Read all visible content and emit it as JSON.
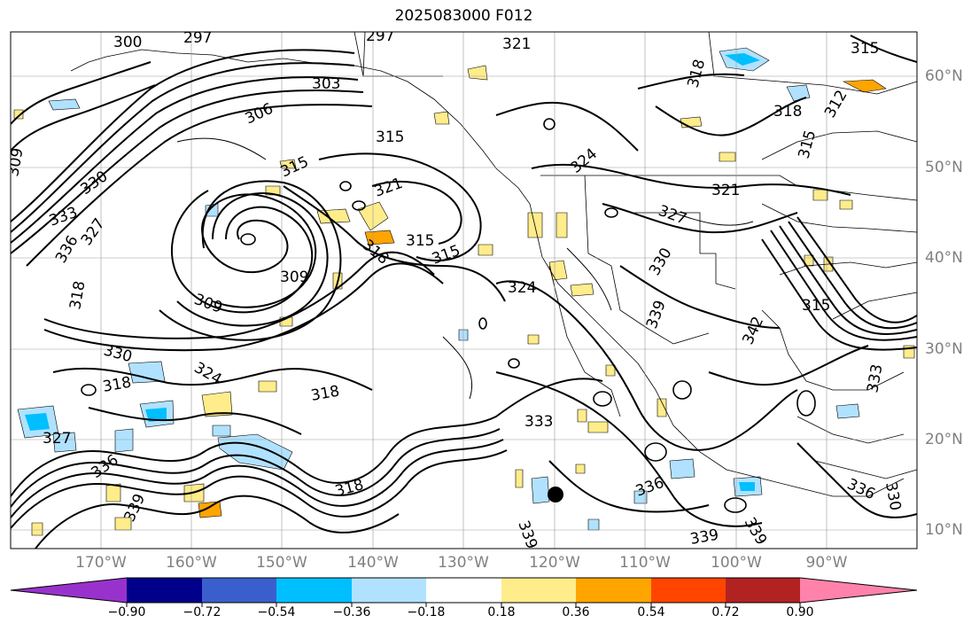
{
  "title": "2025083000 F012",
  "map": {
    "lat_labels": [
      {
        "text": "60°N",
        "lat": 60
      },
      {
        "text": "50°N",
        "lat": 50
      },
      {
        "text": "40°N",
        "lat": 40
      },
      {
        "text": "30°N",
        "lat": 30
      },
      {
        "text": "20°N",
        "lat": 20
      },
      {
        "text": "10°N",
        "lat": 10
      }
    ],
    "lon_labels": [
      {
        "text": "170°W",
        "lon": -170
      },
      {
        "text": "160°W",
        "lon": -160
      },
      {
        "text": "150°W",
        "lon": -150
      },
      {
        "text": "140°W",
        "lon": -140
      },
      {
        "text": "130°W",
        "lon": -130
      },
      {
        "text": "120°W",
        "lon": -120
      },
      {
        "text": "110°W",
        "lon": -110
      },
      {
        "text": "100°W",
        "lon": -100
      },
      {
        "text": "90°W",
        "lon": -90
      }
    ],
    "contour_labels": [
      {
        "text": "300"
      },
      {
        "text": "297"
      },
      {
        "text": "297"
      },
      {
        "text": "321"
      },
      {
        "text": "318"
      },
      {
        "text": "303"
      },
      {
        "text": "306"
      },
      {
        "text": "315"
      },
      {
        "text": "315"
      },
      {
        "text": "318"
      },
      {
        "text": "309"
      },
      {
        "text": "315"
      },
      {
        "text": "321"
      },
      {
        "text": "324"
      },
      {
        "text": "321"
      },
      {
        "text": "327"
      },
      {
        "text": "330"
      },
      {
        "text": "333"
      },
      {
        "text": "336"
      },
      {
        "text": "327"
      },
      {
        "text": "315"
      },
      {
        "text": "315"
      },
      {
        "text": "318"
      },
      {
        "text": "309"
      },
      {
        "text": "309"
      },
      {
        "text": "324"
      },
      {
        "text": "330"
      },
      {
        "text": "339"
      },
      {
        "text": "315"
      },
      {
        "text": "342"
      },
      {
        "text": "330"
      },
      {
        "text": "324"
      },
      {
        "text": "318"
      },
      {
        "text": "318"
      },
      {
        "text": "333"
      },
      {
        "text": "327"
      },
      {
        "text": "336"
      },
      {
        "text": "339"
      },
      {
        "text": "318"
      },
      {
        "text": "336"
      },
      {
        "text": "339"
      },
      {
        "text": "339"
      },
      {
        "text": "339"
      },
      {
        "text": "333"
      },
      {
        "text": "330"
      },
      {
        "text": "336"
      },
      {
        "text": "315"
      },
      {
        "text": "312"
      },
      {
        "text": "318"
      }
    ]
  },
  "colorbar": {
    "colors": [
      "#9932cc",
      "#00008b",
      "#3a5fcd",
      "#00bfff",
      "#b0e2ff",
      "#ffffff",
      "#ffec8b",
      "#ffa500",
      "#ff4500",
      "#b22222",
      "#ff82ab"
    ],
    "tick_labels": [
      "−0.90",
      "−0.72",
      "−0.54",
      "−0.36",
      "−0.18",
      "0.18",
      "0.36",
      "0.54",
      "0.72",
      "0.90"
    ]
  }
}
